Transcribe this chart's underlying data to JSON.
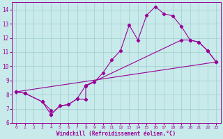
{
  "title": "",
  "xlabel": "Windchill (Refroidissement éolien,°C)",
  "bg_color": "#c8eaea",
  "grid_color": "#b0d8d8",
  "line_color": "#990099",
  "xlim": [
    -0.5,
    23.5
  ],
  "ylim": [
    6,
    14.5
  ],
  "xticks": [
    0,
    1,
    2,
    3,
    4,
    5,
    6,
    7,
    8,
    9,
    10,
    11,
    12,
    13,
    14,
    15,
    16,
    17,
    18,
    19,
    20,
    21,
    22,
    23
  ],
  "yticks": [
    6,
    7,
    8,
    9,
    10,
    11,
    12,
    13,
    14
  ],
  "curve1_x": [
    0,
    1,
    3,
    4,
    4,
    5,
    6,
    7,
    8,
    8,
    9,
    10,
    11,
    12,
    13,
    14,
    15,
    16,
    17,
    18,
    19,
    20,
    21,
    22,
    23
  ],
  "curve1_y": [
    8.2,
    8.1,
    7.5,
    6.9,
    6.6,
    7.2,
    7.3,
    7.7,
    7.65,
    8.6,
    8.9,
    9.55,
    10.45,
    11.1,
    12.9,
    11.85,
    13.6,
    14.2,
    13.7,
    13.55,
    12.8,
    11.85,
    11.7,
    11.1,
    10.3
  ],
  "curve2_x": [
    0,
    1,
    3,
    4,
    5,
    6,
    7,
    8,
    19,
    20,
    21,
    22,
    23
  ],
  "curve2_y": [
    8.2,
    8.1,
    7.5,
    6.6,
    7.2,
    7.3,
    7.7,
    8.65,
    11.85,
    11.85,
    11.7,
    11.1,
    10.3
  ],
  "curve3_x": [
    0,
    23
  ],
  "curve3_y": [
    8.2,
    10.3
  ]
}
